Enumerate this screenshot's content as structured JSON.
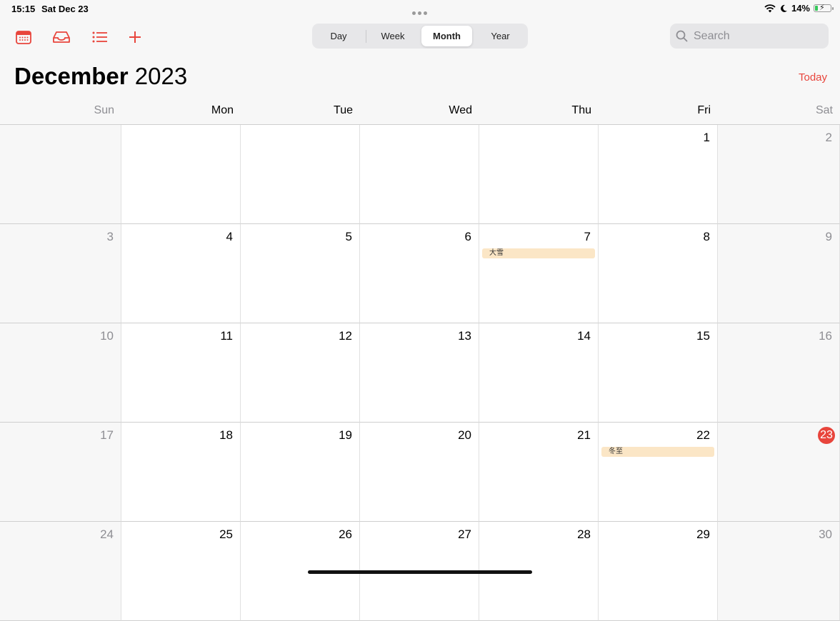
{
  "status": {
    "time": "15:15",
    "date": "Sat Dec 23",
    "battery": "14%"
  },
  "views": [
    "Day",
    "Week",
    "Month",
    "Year"
  ],
  "active_view": "Month",
  "search": {
    "placeholder": "Search"
  },
  "title": {
    "month": "December",
    "year": "2023"
  },
  "today_label": "Today",
  "weekdays": [
    "Sun",
    "Mon",
    "Tue",
    "Wed",
    "Thu",
    "Fri",
    "Sat"
  ],
  "weeks": [
    [
      "",
      "",
      "",
      "",
      "",
      "1",
      "2"
    ],
    [
      "3",
      "4",
      "5",
      "6",
      "7",
      "8",
      "9"
    ],
    [
      "10",
      "11",
      "12",
      "13",
      "14",
      "15",
      "16"
    ],
    [
      "17",
      "18",
      "19",
      "20",
      "21",
      "22",
      "23"
    ],
    [
      "24",
      "25",
      "26",
      "27",
      "28",
      "29",
      "30"
    ]
  ],
  "events": [
    {
      "week": 1,
      "day": 4,
      "label": "大雪"
    },
    {
      "week": 3,
      "day": 5,
      "label": "冬至"
    }
  ],
  "today": {
    "week": 3,
    "day": 6
  },
  "colors": {
    "accent": "#e8453c",
    "event_bg": "#fbe6c6"
  },
  "icons": [
    "calendar-icon",
    "inbox-icon",
    "list-icon",
    "plus-icon",
    "search-icon",
    "wifi-icon",
    "moon-icon",
    "battery-icon"
  ]
}
